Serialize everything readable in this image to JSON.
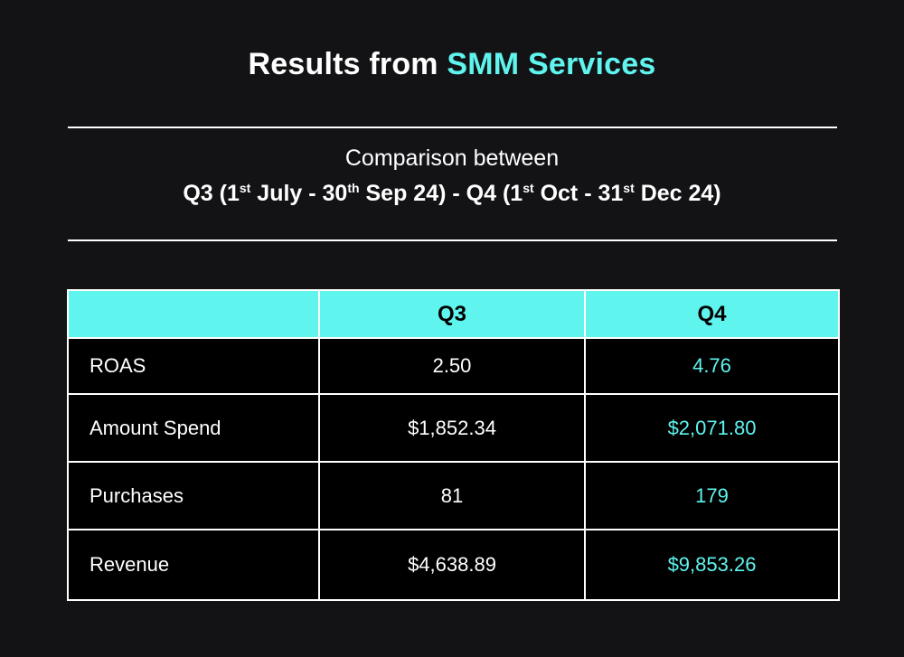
{
  "title": {
    "prefix": "Results from ",
    "highlight": "SMM Services"
  },
  "subtitle": {
    "line1": "Comparison between",
    "line2": {
      "q3_label": "Q3 (1",
      "q3_start_sup": "st",
      "q3_mid": " July - 30",
      "q3_end_sup": "th",
      "q3_tail": " Sep 24) - Q4 (1",
      "q4_start_sup": "st",
      "q4_mid": " Oct - 31",
      "q4_end_sup": "st",
      "q4_tail": " Dec 24)"
    }
  },
  "colors": {
    "accent": "#5ff4ee",
    "background": "#131316",
    "table_body": "#000000"
  },
  "table": {
    "headers": [
      "",
      "Q3",
      "Q4"
    ],
    "rows": [
      {
        "metric": "ROAS",
        "q3": "2.50",
        "q4": "4.76"
      },
      {
        "metric": "Amount Spend",
        "q3": "$1,852.34",
        "q4": "$2,071.80"
      },
      {
        "metric": "Purchases",
        "q3": "81",
        "q4": "179"
      },
      {
        "metric": "Revenue",
        "q3": "$4,638.89",
        "q4": "$9,853.26"
      }
    ]
  }
}
